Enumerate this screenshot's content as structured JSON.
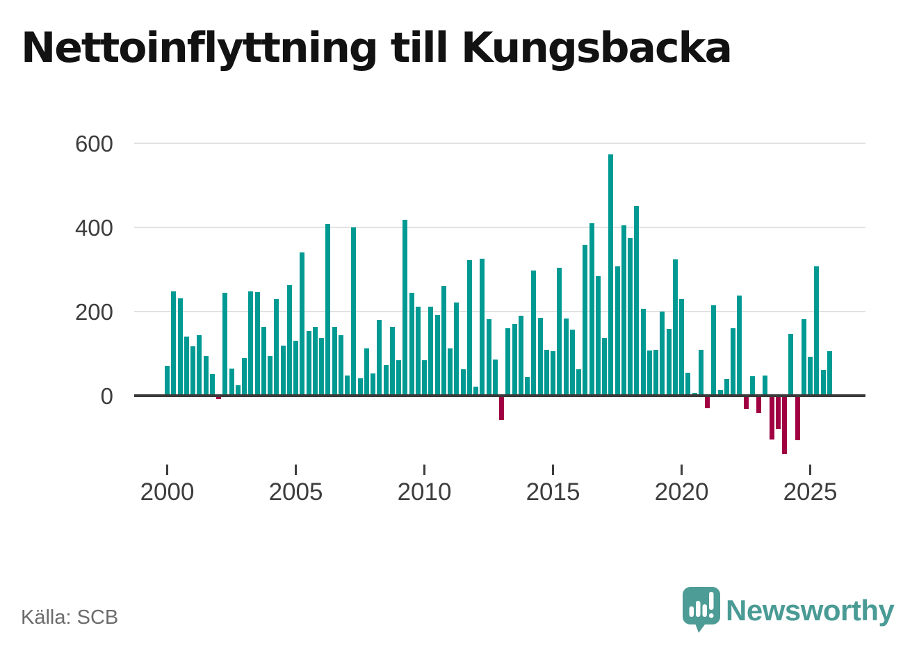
{
  "title": "Nettoinflyttning till Kungsbacka",
  "source": "Källa: SCB",
  "branding": {
    "name": "Newsworthy",
    "icon": "bar-chart-speech-bubble-icon",
    "brand_color": "#4a9b95"
  },
  "colors": {
    "positive_bar": "#009a93",
    "negative_bar": "#a00041",
    "gridline": "#e2e2e2",
    "axis": "#3a3a3a",
    "tick_label": "#3d3d3d",
    "title_text": "#121212",
    "source_text": "#6b6b6b"
  },
  "chart_data": {
    "type": "bar",
    "title": "Nettoinflyttning till Kungsbacka",
    "xlabel": "",
    "ylabel": "",
    "grid": true,
    "legend": "none",
    "ylim": [
      -160,
      620
    ],
    "yticks": [
      0,
      200,
      400,
      600
    ],
    "xticks": [
      "2000",
      "2005",
      "2010",
      "2015",
      "2020",
      "2025"
    ],
    "x_unit": "quarter",
    "x": [
      "2000Q1",
      "2000Q2",
      "2000Q3",
      "2000Q4",
      "2001Q1",
      "2001Q2",
      "2001Q3",
      "2001Q4",
      "2002Q1",
      "2002Q2",
      "2002Q3",
      "2002Q4",
      "2003Q1",
      "2003Q2",
      "2003Q3",
      "2003Q4",
      "2004Q1",
      "2004Q2",
      "2004Q3",
      "2004Q4",
      "2005Q1",
      "2005Q2",
      "2005Q3",
      "2005Q4",
      "2006Q1",
      "2006Q2",
      "2006Q3",
      "2006Q4",
      "2007Q1",
      "2007Q2",
      "2007Q3",
      "2007Q4",
      "2008Q1",
      "2008Q2",
      "2008Q3",
      "2008Q4",
      "2009Q1",
      "2009Q2",
      "2009Q3",
      "2009Q4",
      "2010Q1",
      "2010Q2",
      "2010Q3",
      "2010Q4",
      "2011Q1",
      "2011Q2",
      "2011Q3",
      "2011Q4",
      "2012Q1",
      "2012Q2",
      "2012Q3",
      "2012Q4",
      "2013Q1",
      "2013Q2",
      "2013Q3",
      "2013Q4",
      "2014Q1",
      "2014Q2",
      "2014Q3",
      "2014Q4",
      "2015Q1",
      "2015Q2",
      "2015Q3",
      "2015Q4",
      "2016Q1",
      "2016Q2",
      "2016Q3",
      "2016Q4",
      "2017Q1",
      "2017Q2",
      "2017Q3",
      "2017Q4",
      "2018Q1",
      "2018Q2",
      "2018Q3",
      "2018Q4",
      "2019Q1",
      "2019Q2",
      "2019Q3",
      "2019Q4",
      "2020Q1",
      "2020Q2",
      "2020Q3",
      "2020Q4",
      "2021Q1",
      "2021Q2",
      "2021Q3",
      "2021Q4",
      "2022Q1",
      "2022Q2",
      "2022Q3",
      "2022Q4",
      "2023Q1",
      "2023Q2",
      "2023Q3",
      "2023Q4",
      "2024Q1",
      "2024Q2",
      "2024Q3",
      "2024Q4",
      "2025Q1",
      "2025Q2",
      "2025Q3",
      "2025Q4"
    ],
    "values": [
      71,
      248,
      232,
      140,
      117,
      144,
      94,
      51,
      -9,
      244,
      65,
      25,
      89,
      248,
      247,
      164,
      95,
      230,
      119,
      263,
      130,
      341,
      153,
      163,
      138,
      408,
      163,
      143,
      48,
      400,
      41,
      112,
      53,
      180,
      72,
      163,
      85,
      418,
      244,
      212,
      85,
      212,
      192,
      261,
      113,
      222,
      62,
      323,
      22,
      325,
      181,
      86,
      -58,
      161,
      171,
      190,
      44,
      298,
      185,
      109,
      105,
      304,
      183,
      157,
      63,
      359,
      410,
      285,
      138,
      573,
      307,
      405,
      376,
      452,
      207,
      108,
      109,
      200,
      158,
      324,
      230,
      54,
      6,
      109,
      -30,
      215,
      13,
      40,
      160,
      238,
      -31,
      46,
      -42,
      48,
      -104,
      -80,
      -139,
      147,
      -106,
      182,
      92,
      308,
      61,
      106
    ]
  }
}
